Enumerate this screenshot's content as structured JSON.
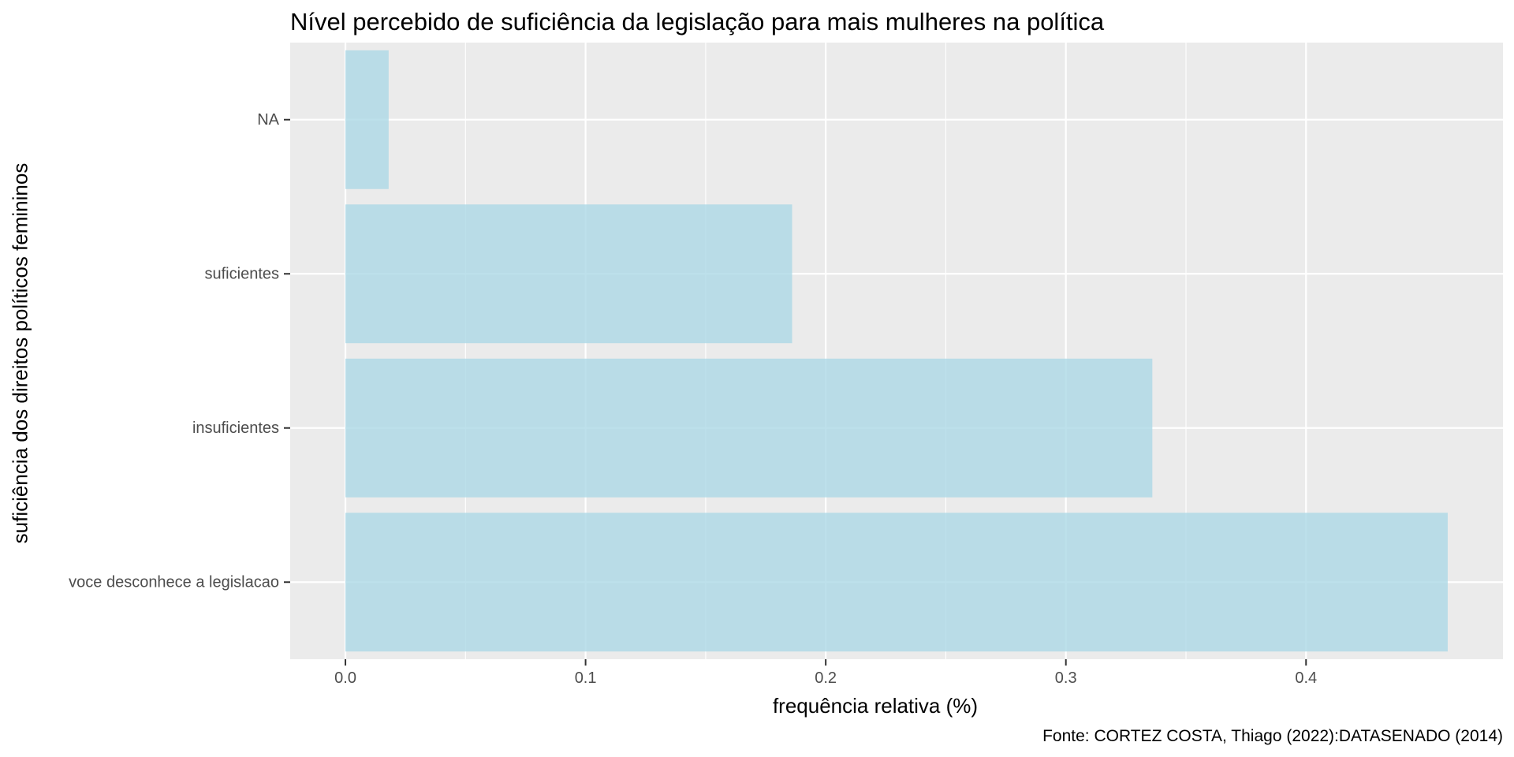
{
  "chart_data": {
    "type": "bar",
    "orientation": "horizontal",
    "title": "Nível percebido de suficiência da legislação para mais mulheres na política",
    "xlabel": "frequência relativa (%)",
    "ylabel": "suficiência dos direitos políticos femininos",
    "caption": "Fonte: CORTEZ COSTA, Thiago (2022):DATASENADO (2014)",
    "categories": [
      "voce desconhece a legislacao",
      "insuficientes",
      "suficientes",
      "NA"
    ],
    "values": [
      0.459,
      0.336,
      0.186,
      0.018
    ],
    "x_ticks": [
      "0.0",
      "0.1",
      "0.2",
      "0.3",
      "0.4"
    ],
    "xlim": [
      -0.023,
      0.482
    ],
    "grid": true,
    "legend": "none",
    "colors": {
      "bar": "#add8e6",
      "panel": "#ebebeb",
      "grid": "#ffffff",
      "tick_text": "#4d4d4d",
      "tick_mark": "#333333"
    }
  }
}
